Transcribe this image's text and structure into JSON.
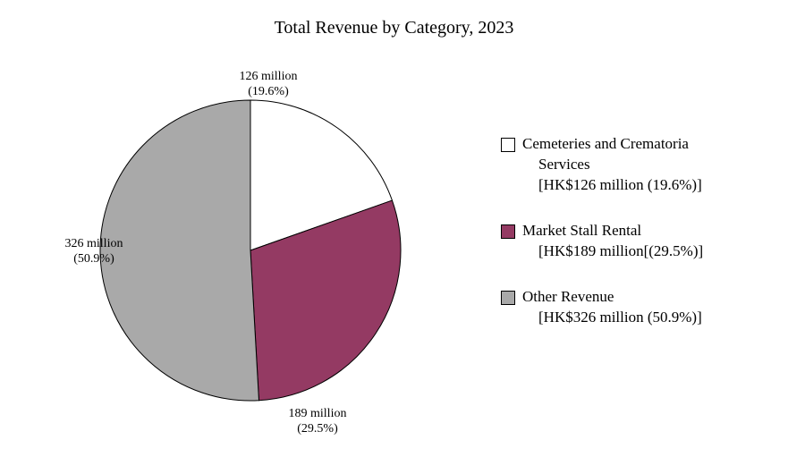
{
  "chart": {
    "type": "pie",
    "title": "Total Revenue by Category, 2023",
    "title_fontsize": 20,
    "background_color": "#ffffff",
    "stroke_color": "#000000",
    "stroke_width": 1,
    "label_fontsize": 14,
    "legend_fontsize": 17,
    "text_color": "#000000",
    "start_angle_deg": 0,
    "categories": [
      {
        "name": "Cemeteries and Crematoria Services",
        "name_line2": "Services",
        "value_million": 126,
        "percent": 19.6,
        "color": "#ffffff",
        "slice_label_line1": "126 million",
        "slice_label_line2": "(19.6%)",
        "legend_line1": "Cemeteries and Crematoria",
        "legend_line2": "Services",
        "legend_line3": "[HK$126 million (19.6%)]"
      },
      {
        "name": "Market Stall Rental",
        "value_million": 189,
        "percent": 29.5,
        "color": "#943a63",
        "slice_label_line1": "189 million",
        "slice_label_line2": "(29.5%)",
        "legend_line1": "Market Stall Rental",
        "legend_line2": "",
        "legend_line3": "[HK$189 million[(29.5%)]"
      },
      {
        "name": "Other Revenue",
        "value_million": 326,
        "percent": 50.9,
        "color": "#a9a9a9",
        "slice_label_line1": "326 million",
        "slice_label_line2": "(50.9%)",
        "legend_line1": "Other Revenue",
        "legend_line2": "",
        "legend_line3": "[HK$326 million (50.9%)]"
      }
    ]
  }
}
